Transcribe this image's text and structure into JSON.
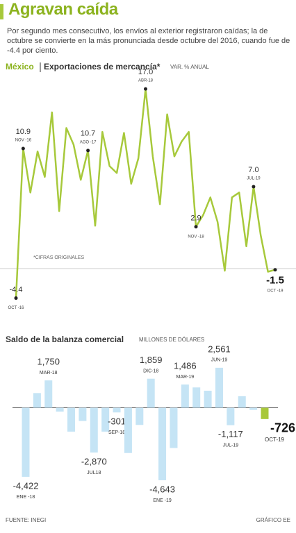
{
  "header": {
    "title": "Agravan caída",
    "subtitle": "Por segundo mes consecutivo, los envíos al exterior registraron caídas; la de octubre se convierte en la más pronunciada desde octubre del 2016, cuando fue de -4.4 por ciento."
  },
  "chart_data": [
    {
      "type": "line",
      "region": "México",
      "title": "Exportaciones de mercancía*",
      "unit": "VAR. % ANUAL",
      "annotation": "*CIFRAS ORIGINALES",
      "color": "#a7c93b",
      "ylim": [
        -5,
        18
      ],
      "categories": [
        "OCT -16",
        "NOV -16",
        null,
        null,
        null,
        null,
        null,
        null,
        null,
        null,
        "AGO -17",
        null,
        null,
        null,
        null,
        null,
        null,
        null,
        "ABR-18",
        null,
        null,
        null,
        null,
        null,
        null,
        "NOV -18",
        null,
        null,
        null,
        null,
        null,
        null,
        null,
        "JUL-19",
        null,
        null,
        "OCT -19"
      ],
      "values": [
        -4.4,
        10.9,
        6.4,
        10.6,
        8.0,
        14.6,
        4.5,
        13.0,
        11.3,
        7.7,
        10.7,
        3.0,
        12.6,
        9.1,
        8.4,
        12.5,
        7.3,
        9.9,
        17.0,
        10.1,
        5.2,
        14.4,
        10.1,
        11.6,
        12.6,
        2.9,
        4.1,
        5.9,
        3.4,
        -1.6,
        5.9,
        6.4,
        0.9,
        7.0,
        2.0,
        -1.7,
        -1.5
      ],
      "value_labels": [
        "-4.4",
        "10.9",
        null,
        null,
        null,
        null,
        null,
        null,
        null,
        null,
        "10.7",
        null,
        null,
        null,
        null,
        null,
        null,
        null,
        "17.0",
        null,
        null,
        null,
        null,
        null,
        null,
        "2.9",
        null,
        null,
        null,
        null,
        null,
        null,
        null,
        "7.0",
        null,
        null,
        "-1.5"
      ]
    },
    {
      "type": "bar",
      "title": "Saldo de la balanza comercial",
      "unit": "MILLONES DE DÓLARES",
      "color": "#c5e4f5",
      "highlight_color": "#a8c83a",
      "ylim": [
        -5000,
        3000
      ],
      "categories": [
        "ENE -18",
        null,
        "MAR-18",
        null,
        null,
        null,
        "JUL18",
        null,
        "SEP-18",
        null,
        null,
        "DIC-18",
        "ENE -19",
        null,
        "MAR-19",
        null,
        null,
        "JUN-19",
        "JUL-19",
        null,
        null,
        "OCT-19"
      ],
      "values": [
        -4422,
        940,
        1750,
        -250,
        -1530,
        -850,
        -2870,
        -1530,
        -301,
        -2900,
        -1100,
        1859,
        -4643,
        -2580,
        1486,
        1300,
        1090,
        2561,
        -1117,
        740,
        -140,
        -726
      ],
      "value_labels": [
        "-4,422",
        null,
        "1,750",
        null,
        null,
        null,
        "-2,870",
        null,
        "-301",
        null,
        null,
        "1,859",
        "-4,643",
        null,
        "1,486",
        null,
        null,
        "2,561",
        "-1,117",
        null,
        null,
        "-726"
      ]
    }
  ],
  "footer": {
    "source": "FUENTE: INEGI",
    "credit": "GRÁFICO EE"
  }
}
